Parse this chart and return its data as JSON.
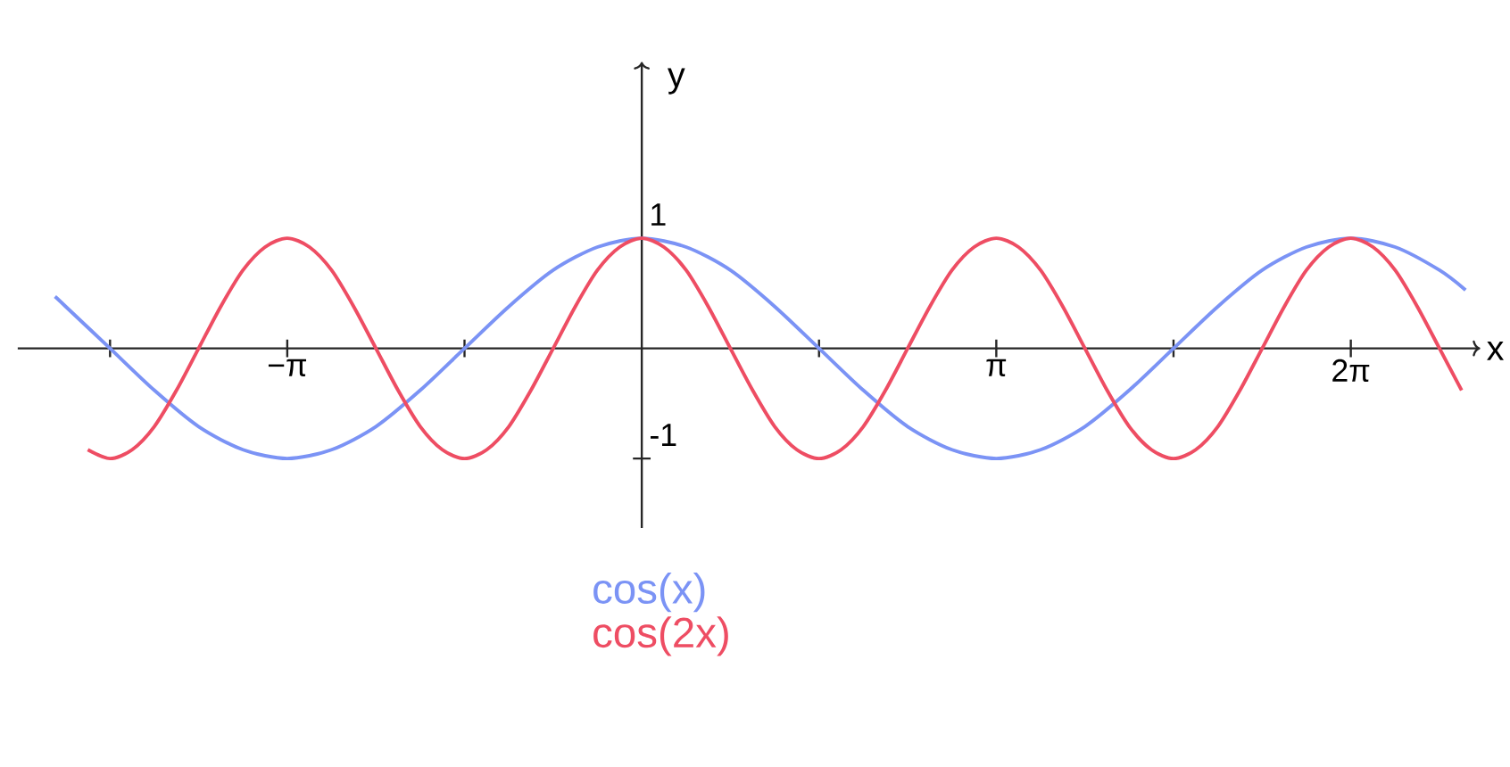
{
  "chart_data": {
    "type": "line",
    "xlabel": "x",
    "ylabel": "y",
    "xlim": [
      -5.53,
      7.43
    ],
    "ylim": [
      -1.63,
      2.6
    ],
    "xticks": [
      {
        "value": -4.712,
        "label": null
      },
      {
        "value": -3.1416,
        "label": "−π"
      },
      {
        "value": -1.5708,
        "label": null
      },
      {
        "value": 1.5708,
        "label": null
      },
      {
        "value": 3.1416,
        "label": "π"
      },
      {
        "value": 4.712,
        "label": null
      },
      {
        "value": 6.2832,
        "label": "2π"
      }
    ],
    "yticks": [
      1,
      -1
    ],
    "legend": "bottom",
    "series": [
      {
        "name": "cos(x)",
        "color": "#7b93f5",
        "x": [
          -5.2,
          -5.105,
          -4.712,
          -4.32,
          -3.927,
          -3.534,
          -3.142,
          -2.749,
          -2.356,
          -1.963,
          -1.571,
          -1.178,
          -0.785,
          -0.393,
          0,
          0.393,
          0.785,
          1.178,
          1.571,
          1.963,
          2.356,
          2.749,
          3.142,
          3.534,
          3.927,
          4.32,
          4.712,
          5.105,
          5.498,
          5.89,
          6.283,
          6.676,
          7.069,
          7.3
        ],
        "values": [
          0.47,
          0.38,
          0,
          -0.38,
          -0.71,
          -0.92,
          -1,
          -0.92,
          -0.71,
          -0.38,
          0,
          0.38,
          0.71,
          0.92,
          1,
          0.92,
          0.71,
          0.38,
          0,
          -0.38,
          -0.71,
          -0.92,
          -1,
          -0.92,
          -0.71,
          -0.38,
          0,
          0.38,
          0.71,
          0.92,
          1,
          0.92,
          0.71,
          0.53
        ]
      },
      {
        "name": "cos(2x)",
        "color": "#ee4d63",
        "x": [
          -4.909,
          -4.712,
          -4.516,
          -4.32,
          -4.123,
          -3.927,
          -3.731,
          -3.534,
          -3.338,
          -3.142,
          -2.945,
          -2.749,
          -2.553,
          -2.356,
          -2.16,
          -1.963,
          -1.767,
          -1.571,
          -1.374,
          -1.178,
          -0.982,
          -0.785,
          -0.589,
          -0.393,
          -0.196,
          0,
          0.196,
          0.393,
          0.589,
          0.785,
          0.982,
          1.178,
          1.374,
          1.571,
          1.767,
          1.963,
          2.16,
          2.356,
          2.553,
          2.749,
          2.945,
          3.142,
          3.338,
          3.534,
          3.731,
          3.927,
          4.123,
          4.32,
          4.516,
          4.712,
          4.909,
          5.105,
          5.301,
          5.498,
          5.694,
          5.89,
          6.087,
          6.283,
          6.48,
          6.676,
          6.872,
          7.069,
          7.265
        ],
        "values": [
          -0.92,
          -1,
          -0.92,
          -0.71,
          -0.38,
          0,
          0.38,
          0.71,
          0.92,
          1,
          0.92,
          0.71,
          0.38,
          0,
          -0.38,
          -0.71,
          -0.92,
          -1,
          -0.92,
          -0.71,
          -0.38,
          0,
          0.38,
          0.71,
          0.92,
          1,
          0.92,
          0.71,
          0.38,
          0,
          -0.38,
          -0.71,
          -0.92,
          -1,
          -0.92,
          -0.71,
          -0.38,
          0,
          0.38,
          0.71,
          0.92,
          1,
          0.92,
          0.71,
          0.38,
          0,
          -0.38,
          -0.71,
          -0.92,
          -1,
          -0.92,
          -0.71,
          -0.38,
          0,
          0.38,
          0.71,
          0.92,
          1,
          0.92,
          0.71,
          0.38,
          0,
          -0.38
        ]
      }
    ]
  }
}
